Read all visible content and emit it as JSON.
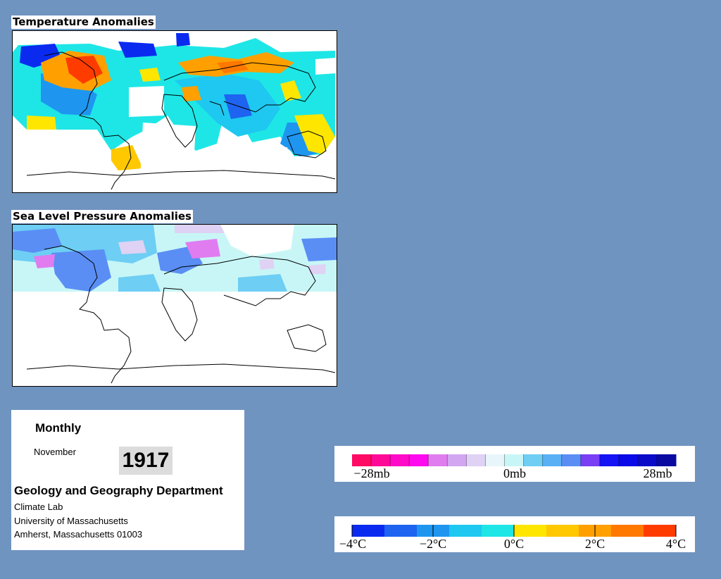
{
  "temperature_map": {
    "title": "Temperature Anomalies"
  },
  "pressure_map": {
    "title": "Sea Level Pressure Anomalies"
  },
  "info": {
    "period": "Monthly",
    "month": "November",
    "year": "1917",
    "department": "Geology and Geography Department",
    "lab": "Climate Lab",
    "university": "University of Massachusetts",
    "address": "Amherst, Massachusetts 01003"
  },
  "pressure_legend": {
    "min_label": "−28mb",
    "mid_label": "0mb",
    "max_label": "28mb",
    "colors": [
      "#ff0a64",
      "#ff0a96",
      "#ff0ac8",
      "#ff0aef",
      "#e07cf0",
      "#d3a6f2",
      "#dfd2f4",
      "#e8f6fb",
      "#c8f6f6",
      "#6ecef4",
      "#5ab0f4",
      "#5a8ef4",
      "#7a3ef4",
      "#1414f4",
      "#0a0ae8",
      "#0a0ac8",
      "#0a0aa0"
    ]
  },
  "temperature_legend": {
    "labels": [
      "−4°C",
      "−2°C",
      "0°C",
      "2°C",
      "4°C"
    ],
    "colors": [
      "#0a2af0",
      "#1e64f0",
      "#1e96f0",
      "#1ec8f0",
      "#1ee6e6",
      "#ffe600",
      "#ffc800",
      "#ffa000",
      "#ff7800",
      "#ff3c00"
    ]
  }
}
